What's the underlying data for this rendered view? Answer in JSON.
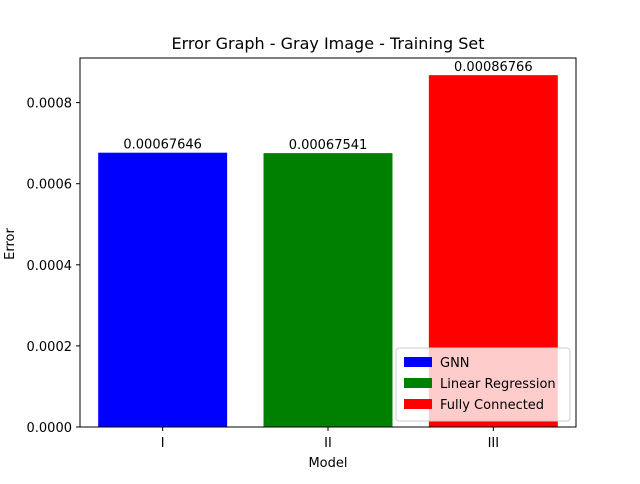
{
  "chart_data": {
    "type": "bar",
    "title": "Error Graph - Gray Image - Training Set",
    "xlabel": "Model",
    "ylabel": "Error",
    "categories": [
      "I",
      "II",
      "III"
    ],
    "values": [
      0.00067646,
      0.00067541,
      0.00086766
    ],
    "data_labels": [
      "0.00067646",
      "0.00067541",
      "0.00086766"
    ],
    "colors": [
      "#0000ff",
      "#008000",
      "#ff0000"
    ],
    "ylim": [
      0,
      0.00091
    ],
    "yticks": [
      0,
      0.0002,
      0.0004,
      0.0006,
      0.0008
    ],
    "ytick_labels": [
      "0.0000",
      "0.0002",
      "0.0004",
      "0.0006",
      "0.0008"
    ],
    "grid": false,
    "legend": {
      "placement": "lower-right",
      "entries": [
        {
          "label": "GNN",
          "color": "#0000ff"
        },
        {
          "label": "Linear Regression",
          "color": "#008000"
        },
        {
          "label": "Fully Connected",
          "color": "#ff0000"
        }
      ]
    }
  }
}
